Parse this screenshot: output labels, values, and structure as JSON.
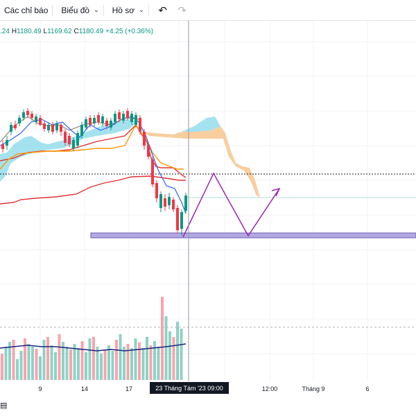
{
  "toolbar": {
    "indicators_label": "Các chỉ báo",
    "chart_label": "Biểu đồ",
    "profile_label": "Hồ sơ",
    "undo_icon": "undo-icon",
    "redo_icon": "redo-icon"
  },
  "ohlc": {
    "open_partial": ".24",
    "h_key": "H",
    "h_val": "1180.49",
    "l_key": "L",
    "l_val": "1169.62",
    "c_key": "C",
    "c_val": "1180.49",
    "change": "+4.25 (+0.36%)"
  },
  "xaxis": {
    "ticks": [
      "9",
      "14",
      "17",
      "12:00",
      "Tháng 9",
      "6"
    ],
    "crosshair": "23 Tháng Tám '23   09:00"
  },
  "colors": {
    "up": "#089981",
    "down": "#f23645",
    "conversion_line": "#2962ff",
    "base_line": "#ff9800",
    "lagging_line": "#43a047",
    "kumo_bull": "#7fd6e8",
    "kumo_bear": "#f7c58e",
    "red_band": "#e03131",
    "zone": "#b3a8e0",
    "projection": "#9c27b0"
  }
}
